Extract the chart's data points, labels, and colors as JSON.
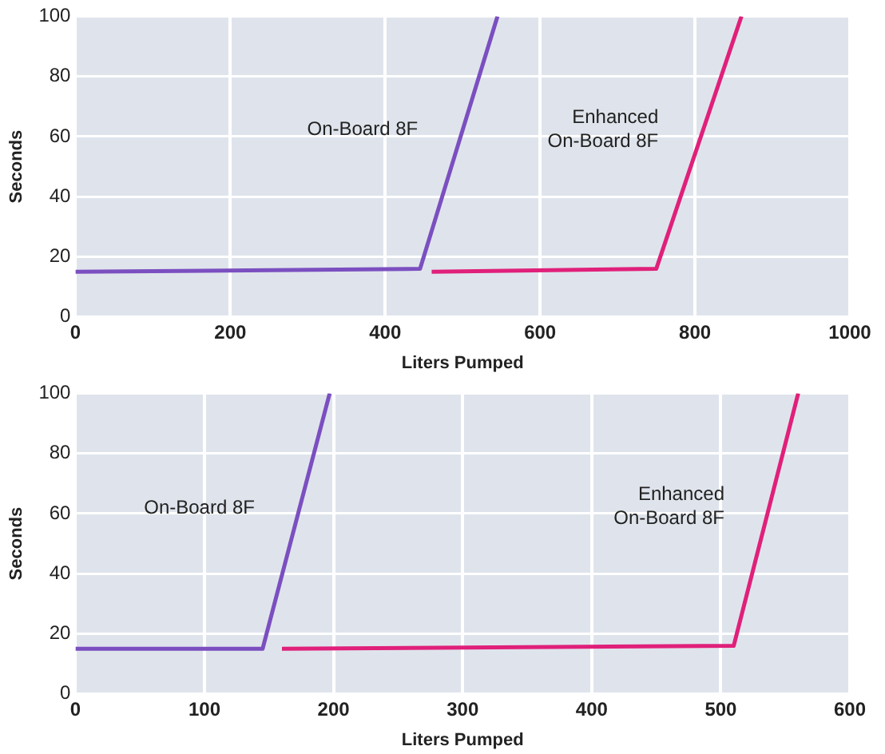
{
  "chart_data": [
    {
      "type": "line",
      "xlabel": "Liters Pumped",
      "ylabel": "Seconds",
      "xlim": [
        0,
        1000
      ],
      "xticks": [
        0,
        200,
        400,
        600,
        800,
        1000
      ],
      "ylim": [
        0,
        100
      ],
      "yticks": [
        0,
        20,
        40,
        60,
        80,
        100
      ],
      "grid": true,
      "marker": "none",
      "legend": false,
      "series": [
        {
          "name": "On-Board 8F",
          "color": "#7b4fc0",
          "x": [
            0,
            445,
            545
          ],
          "values": [
            15,
            16,
            100
          ]
        },
        {
          "name": "Enhanced On-Board 8F",
          "color": "#e0207a",
          "x": [
            460,
            750,
            860
          ],
          "values": [
            15,
            16,
            100
          ]
        }
      ]
    },
    {
      "type": "line",
      "xlabel": "Liters Pumped",
      "ylabel": "Seconds",
      "xlim": [
        0,
        600
      ],
      "xticks": [
        0,
        100,
        200,
        300,
        400,
        500,
        600
      ],
      "ylim": [
        0,
        100
      ],
      "yticks": [
        0,
        20,
        40,
        60,
        80,
        100
      ],
      "grid": true,
      "marker": "none",
      "legend": false,
      "series": [
        {
          "name": "On-Board 8F",
          "color": "#7b4fc0",
          "x": [
            0,
            145,
            197
          ],
          "values": [
            15,
            15,
            100
          ]
        },
        {
          "name": "Enhanced On-Board 8F",
          "color": "#e0207a",
          "x": [
            160,
            510,
            560
          ],
          "values": [
            15,
            16,
            100
          ]
        }
      ]
    }
  ]
}
